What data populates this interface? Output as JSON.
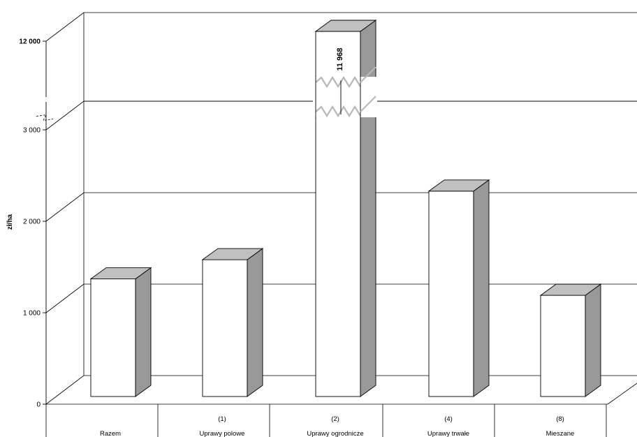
{
  "chart_data": {
    "type": "bar",
    "ylabel": "zł/ha",
    "categories": [
      {
        "code": "",
        "name": "Razem"
      },
      {
        "code": "(1)",
        "name": "Uprawy polowe"
      },
      {
        "code": "(2)",
        "name": "Uprawy ogrodnicze"
      },
      {
        "code": "(4)",
        "name": "Uprawy trwałe"
      },
      {
        "code": "(8)",
        "name": "Mieszane"
      }
    ],
    "values": [
      1370,
      1580,
      11968,
      2330,
      1190
    ],
    "data_labels": [
      "",
      "",
      "11 968",
      "",
      ""
    ],
    "broken_axis": true,
    "axis_break_from": 3000,
    "axis_break_to": 12000,
    "yticks": [
      {
        "value": 0,
        "label": "0"
      },
      {
        "value": 1000,
        "label": "1 000"
      },
      {
        "value": 2000,
        "label": "2 000"
      },
      {
        "value": 3000,
        "label": "3 000"
      },
      {
        "value": 12000,
        "label": "12 000"
      }
    ],
    "grid": true,
    "style": "3d",
    "colors": {
      "bar_front": "#ffffff",
      "bar_side": "#999999",
      "bar_top": "#c0c0c0",
      "outline": "#000000",
      "grid": "#000000"
    }
  }
}
